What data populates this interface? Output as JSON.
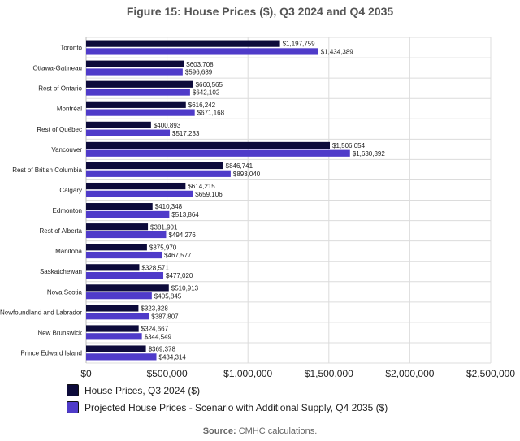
{
  "chart_data": {
    "type": "bar",
    "orientation": "horizontal",
    "title": "Figure 15: House Prices ($), Q3 2024 and Q4 2035",
    "categories": [
      "Toronto",
      "Ottawa-Gatineau",
      "Rest of Ontario",
      "Montréal",
      "Rest of Québec",
      "Vancouver",
      "Rest of British Columbia",
      "Calgary",
      "Edmonton",
      "Rest of Alberta",
      "Manitoba",
      "Saskatchewan",
      "Nova Scotia",
      "Newfoundland and Labrador",
      "New Brunswick",
      "Prince Edward Island"
    ],
    "series": [
      {
        "name": "House Prices, Q3 2024 ($)",
        "color": "#0d0b3b",
        "values": [
          1197759,
          603708,
          660565,
          616242,
          400893,
          1506054,
          846741,
          614215,
          410348,
          381901,
          375970,
          328571,
          510913,
          323328,
          324667,
          369378
        ],
        "labels": [
          "$1,197,759",
          "$603,708",
          "$660,565",
          "$616,242",
          "$400,893",
          "$1,506,054",
          "$846,741",
          "$614,215",
          "$410,348",
          "$381,901",
          "$375,970",
          "$328,571",
          "$510,913",
          "$323,328",
          "$324,667",
          "$369,378"
        ]
      },
      {
        "name": "Projected House Prices - Scenario with Additional Supply, Q4 2035 ($)",
        "color": "#4f3bc9",
        "values": [
          1434389,
          596689,
          642102,
          671168,
          517233,
          1630392,
          893040,
          659106,
          513864,
          494276,
          467577,
          477020,
          405845,
          387807,
          344549,
          434314
        ],
        "labels": [
          "$1,434,389",
          "$596,689",
          "$642,102",
          "$671,168",
          "$517,233",
          "$1,630,392",
          "$893,040",
          "$659,106",
          "$513,864",
          "$494,276",
          "$467,577",
          "$477,020",
          "$405,845",
          "$387,807",
          "$344,549",
          "$434,314"
        ]
      }
    ],
    "xlim": [
      0,
      2500000
    ],
    "xticks": [
      0,
      500000,
      1000000,
      1500000,
      2000000,
      2500000
    ],
    "xtick_labels": [
      "$0",
      "$500,000",
      "$1,000,000",
      "$1,500,000",
      "$2,000,000",
      "$2,500,000"
    ],
    "grid": true,
    "legend_position": "bottom"
  },
  "source": {
    "prefix": "Source:",
    "text": " CMHC calculations."
  }
}
